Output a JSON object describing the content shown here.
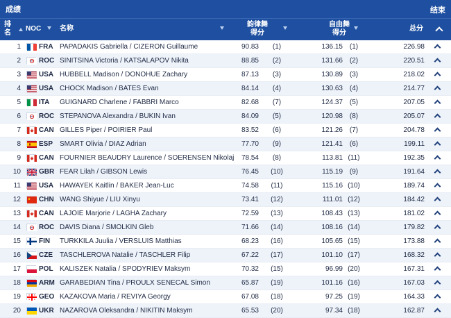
{
  "header": {
    "title": "成绩",
    "status": "结束"
  },
  "columns": {
    "rank": "排名",
    "noc": "NOC",
    "name": "名称",
    "rhythm": "韵律舞得分",
    "free": "自由舞得分",
    "total": "总分"
  },
  "colors": {
    "header_bg": "#1e4fa0",
    "row_alt": "#eef3fa"
  },
  "rows": [
    {
      "rank": "1",
      "noc": "FRA",
      "flag": "france",
      "name": "PAPADAKIS Gabriella / CIZERON Guillaume",
      "rd": "90.83",
      "rdr": "(1)",
      "fd": "136.15",
      "fdr": "(1)",
      "total": "226.98"
    },
    {
      "rank": "2",
      "noc": "ROC",
      "flag": "roc",
      "name": "SINITSINA Victoria / KATSALAPOV Nikita",
      "rd": "88.85",
      "rdr": "(2)",
      "fd": "131.66",
      "fdr": "(2)",
      "total": "220.51"
    },
    {
      "rank": "3",
      "noc": "USA",
      "flag": "usa",
      "name": "HUBBELL Madison / DONOHUE Zachary",
      "rd": "87.13",
      "rdr": "(3)",
      "fd": "130.89",
      "fdr": "(3)",
      "total": "218.02"
    },
    {
      "rank": "4",
      "noc": "USA",
      "flag": "usa",
      "name": "CHOCK Madison / BATES Evan",
      "rd": "84.14",
      "rdr": "(4)",
      "fd": "130.63",
      "fdr": "(4)",
      "total": "214.77"
    },
    {
      "rank": "5",
      "noc": "ITA",
      "flag": "italy",
      "name": "GUIGNARD Charlene / FABBRI Marco",
      "rd": "82.68",
      "rdr": "(7)",
      "fd": "124.37",
      "fdr": "(5)",
      "total": "207.05"
    },
    {
      "rank": "6",
      "noc": "ROC",
      "flag": "roc",
      "name": "STEPANOVA Alexandra / BUKIN Ivan",
      "rd": "84.09",
      "rdr": "(5)",
      "fd": "120.98",
      "fdr": "(8)",
      "total": "205.07"
    },
    {
      "rank": "7",
      "noc": "CAN",
      "flag": "canada",
      "name": "GILLES Piper / POIRIER Paul",
      "rd": "83.52",
      "rdr": "(6)",
      "fd": "121.26",
      "fdr": "(7)",
      "total": "204.78"
    },
    {
      "rank": "8",
      "noc": "ESP",
      "flag": "spain",
      "name": "SMART Olivia / DIAZ Adrian",
      "rd": "77.70",
      "rdr": "(9)",
      "fd": "121.41",
      "fdr": "(6)",
      "total": "199.11"
    },
    {
      "rank": "9",
      "noc": "CAN",
      "flag": "canada",
      "name": "FOURNIER BEAUDRY Laurence / SOERENSEN Nikolaj",
      "rd": "78.54",
      "rdr": "(8)",
      "fd": "113.81",
      "fdr": "(11)",
      "total": "192.35"
    },
    {
      "rank": "10",
      "noc": "GBR",
      "flag": "uk",
      "name": "FEAR Lilah / GIBSON Lewis",
      "rd": "76.45",
      "rdr": "(10)",
      "fd": "115.19",
      "fdr": "(9)",
      "total": "191.64"
    },
    {
      "rank": "11",
      "noc": "USA",
      "flag": "usa",
      "name": "HAWAYEK Kaitlin / BAKER Jean-Luc",
      "rd": "74.58",
      "rdr": "(11)",
      "fd": "115.16",
      "fdr": "(10)",
      "total": "189.74"
    },
    {
      "rank": "12",
      "noc": "CHN",
      "flag": "china",
      "name": "WANG Shiyue / LIU Xinyu",
      "rd": "73.41",
      "rdr": "(12)",
      "fd": "111.01",
      "fdr": "(12)",
      "total": "184.42"
    },
    {
      "rank": "13",
      "noc": "CAN",
      "flag": "canada",
      "name": "LAJOIE Marjorie / LAGHA Zachary",
      "rd": "72.59",
      "rdr": "(13)",
      "fd": "108.43",
      "fdr": "(13)",
      "total": "181.02"
    },
    {
      "rank": "14",
      "noc": "ROC",
      "flag": "roc",
      "name": "DAVIS Diana / SMOLKIN Gleb",
      "rd": "71.66",
      "rdr": "(14)",
      "fd": "108.16",
      "fdr": "(14)",
      "total": "179.82"
    },
    {
      "rank": "15",
      "noc": "FIN",
      "flag": "finland",
      "name": "TURKKILA Juulia / VERSLUIS Matthias",
      "rd": "68.23",
      "rdr": "(16)",
      "fd": "105.65",
      "fdr": "(15)",
      "total": "173.88"
    },
    {
      "rank": "16",
      "noc": "CZE",
      "flag": "czech",
      "name": "TASCHLEROVA Natalie / TASCHLER Filip",
      "rd": "67.22",
      "rdr": "(17)",
      "fd": "101.10",
      "fdr": "(17)",
      "total": "168.32"
    },
    {
      "rank": "17",
      "noc": "POL",
      "flag": "poland",
      "name": "KALISZEK Natalia / SPODYRIEV Maksym",
      "rd": "70.32",
      "rdr": "(15)",
      "fd": "96.99",
      "fdr": "(20)",
      "total": "167.31"
    },
    {
      "rank": "18",
      "noc": "ARM",
      "flag": "armenia",
      "name": "GARABEDIAN Tina / PROULX SENECAL Simon",
      "rd": "65.87",
      "rdr": "(19)",
      "fd": "101.16",
      "fdr": "(16)",
      "total": "167.03"
    },
    {
      "rank": "19",
      "noc": "GEO",
      "flag": "georgia",
      "name": "KAZAKOVA Maria / REVIYA Georgy",
      "rd": "67.08",
      "rdr": "(18)",
      "fd": "97.25",
      "fdr": "(19)",
      "total": "164.33"
    },
    {
      "rank": "20",
      "noc": "UKR",
      "flag": "ukraine",
      "name": "NAZAROVA Oleksandra / NIKITIN Maksym",
      "rd": "65.53",
      "rdr": "(20)",
      "fd": "97.34",
      "fdr": "(18)",
      "total": "162.87"
    }
  ]
}
